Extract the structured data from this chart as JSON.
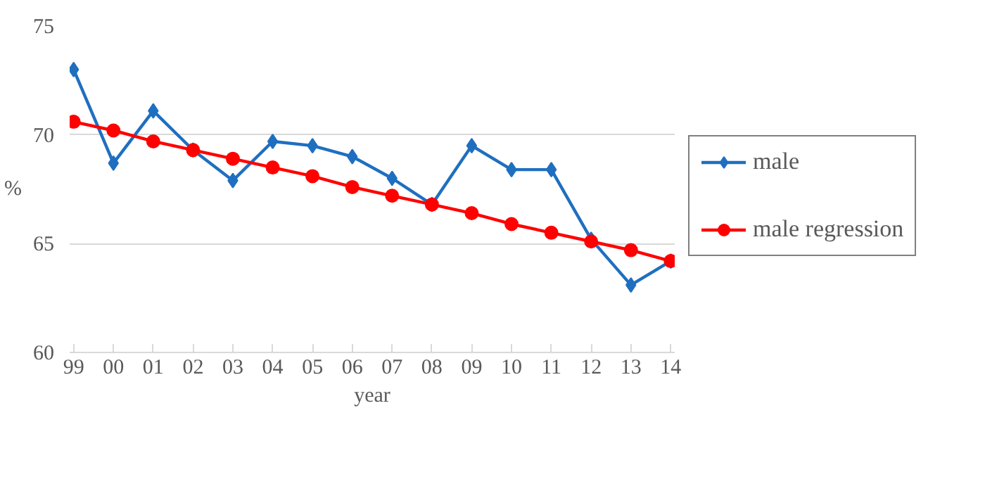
{
  "chart_data": {
    "type": "line",
    "xlabel": "year",
    "ylabel": "%",
    "categories": [
      "99",
      "00",
      "01",
      "02",
      "03",
      "04",
      "05",
      "06",
      "07",
      "08",
      "09",
      "10",
      "11",
      "12",
      "13",
      "14"
    ],
    "series": [
      {
        "name": "male",
        "color": "#1f6fc0",
        "marker": "diamond",
        "values": [
          73.0,
          68.7,
          71.1,
          69.3,
          67.9,
          69.7,
          69.5,
          69.0,
          68.0,
          66.8,
          69.5,
          68.4,
          68.4,
          65.2,
          63.1,
          64.2
        ]
      },
      {
        "name": "male regression",
        "color": "#ff0000",
        "marker": "circle",
        "values": [
          70.6,
          70.2,
          69.7,
          69.3,
          68.9,
          68.5,
          68.1,
          67.6,
          67.2,
          66.8,
          66.4,
          65.9,
          65.5,
          65.1,
          64.7,
          64.2
        ]
      }
    ],
    "ylim": [
      60,
      75
    ],
    "yticks": [
      60,
      65,
      70,
      75
    ],
    "grid": "y",
    "legend": "right",
    "line_style": "solid"
  }
}
